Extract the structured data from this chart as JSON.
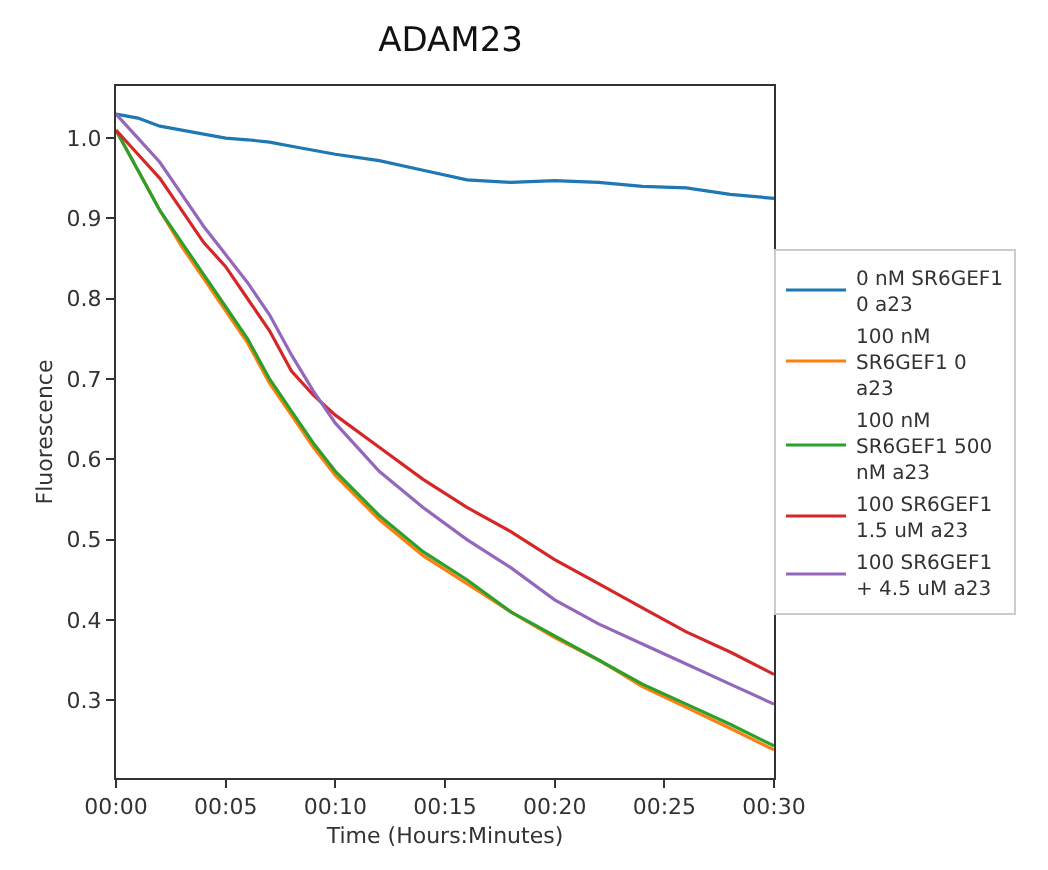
{
  "chart_data": {
    "type": "line",
    "title": "ADAM23",
    "xlabel": "Time (Hours:Minutes)",
    "ylabel": "Fluorescence",
    "x": [
      0,
      1,
      2,
      3,
      4,
      5,
      6,
      7,
      8,
      9,
      10,
      12,
      14,
      16,
      18,
      20,
      22,
      24,
      26,
      28,
      30
    ],
    "series": [
      {
        "name": "0 nM SR6GEF1 0 a23",
        "color": "#1f77b4",
        "values": [
          1.03,
          1.025,
          1.015,
          1.01,
          1.005,
          1.0,
          0.998,
          0.995,
          0.99,
          0.985,
          0.98,
          0.972,
          0.96,
          0.948,
          0.945,
          0.947,
          0.945,
          0.94,
          0.938,
          0.93,
          0.925
        ]
      },
      {
        "name": "100 nM SR6GEF1 0 a23",
        "color": "#ff7f0e",
        "values": [
          1.01,
          0.96,
          0.91,
          0.865,
          0.825,
          0.785,
          0.745,
          0.695,
          0.655,
          0.615,
          0.58,
          0.525,
          0.48,
          0.445,
          0.41,
          0.378,
          0.35,
          0.317,
          0.291,
          0.265,
          0.238
        ]
      },
      {
        "name": "100 nM SR6GEF1 500 nM a23",
        "color": "#2ca02c",
        "values": [
          1.01,
          0.96,
          0.91,
          0.87,
          0.83,
          0.79,
          0.75,
          0.7,
          0.66,
          0.62,
          0.585,
          0.53,
          0.485,
          0.45,
          0.41,
          0.38,
          0.35,
          0.32,
          0.295,
          0.27,
          0.243
        ]
      },
      {
        "name": "100 SR6GEF1 1.5 uM a23",
        "color": "#d62728",
        "values": [
          1.01,
          0.98,
          0.95,
          0.91,
          0.87,
          0.84,
          0.8,
          0.76,
          0.71,
          0.68,
          0.655,
          0.615,
          0.575,
          0.54,
          0.51,
          0.475,
          0.445,
          0.415,
          0.385,
          0.36,
          0.332
        ]
      },
      {
        "name": "100 SR6GEF1 + 4.5 uM a23",
        "color": "#9467bd",
        "values": [
          1.03,
          1.0,
          0.97,
          0.93,
          0.89,
          0.855,
          0.82,
          0.78,
          0.73,
          0.685,
          0.645,
          0.585,
          0.54,
          0.5,
          0.465,
          0.425,
          0.395,
          0.37,
          0.345,
          0.32,
          0.295
        ]
      }
    ],
    "xlim": [
      0,
      30
    ],
    "xticks": [
      {
        "value": 0,
        "label": "00:00"
      },
      {
        "value": 5,
        "label": "00:05"
      },
      {
        "value": 10,
        "label": "00:10"
      },
      {
        "value": 15,
        "label": "00:15"
      },
      {
        "value": 20,
        "label": "00:20"
      },
      {
        "value": 25,
        "label": "00:25"
      },
      {
        "value": 30,
        "label": "00:30"
      }
    ],
    "ylim": [
      0.203,
      1.065
    ],
    "yticks": [
      0.3,
      0.4,
      0.5,
      0.6,
      0.7,
      0.8,
      0.9,
      {
        "value": 1.0,
        "label": "1.0"
      }
    ],
    "legend": "right",
    "marker": "none",
    "line_style": "solid"
  }
}
